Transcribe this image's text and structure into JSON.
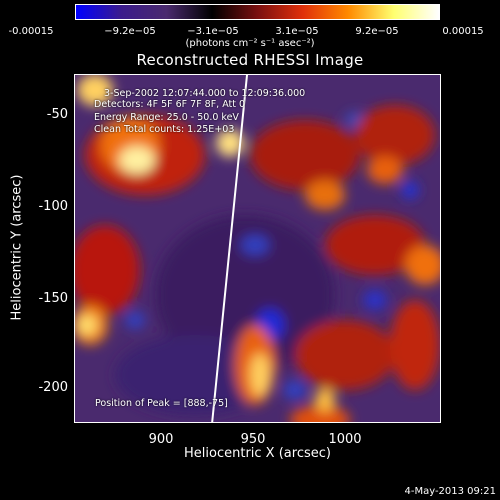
{
  "colorbar": {
    "tick_labels": [
      "-0.00015",
      "−9.2e−05",
      "−3.1e−05",
      "3.1e−05",
      "9.2e−05",
      "0.00015"
    ],
    "units": "(photons cm⁻² s⁻¹ asec⁻²)",
    "colors": [
      "#0000ff",
      "#3b1b8c",
      "#4a2a6e",
      "#000000",
      "#7a1010",
      "#e0300a",
      "#ff8a00",
      "#ffff70",
      "#ffffff"
    ]
  },
  "title": "Reconstructed RHESSI Image",
  "annotations": {
    "time": "3-Sep-2002 12:07:44.000 to 12:09:36.000",
    "detectors": "Detectors: 4F 5F 6F 7F 8F, Att 0",
    "energy": "Energy Range: 25.0 - 50.0 keV",
    "clean": "Clean    Total counts: 1.25E+03",
    "peak": "Position of Peak = [888,-75]"
  },
  "axes": {
    "x_label": "Heliocentric X (arcsec)",
    "y_label": "Heliocentric Y (arcsec)",
    "x_ticks": [
      "900",
      "950",
      "1000"
    ],
    "y_ticks": [
      "-50",
      "-100",
      "-150",
      "-200"
    ]
  },
  "footer": {
    "date": "4-May-2013 09:21"
  }
}
